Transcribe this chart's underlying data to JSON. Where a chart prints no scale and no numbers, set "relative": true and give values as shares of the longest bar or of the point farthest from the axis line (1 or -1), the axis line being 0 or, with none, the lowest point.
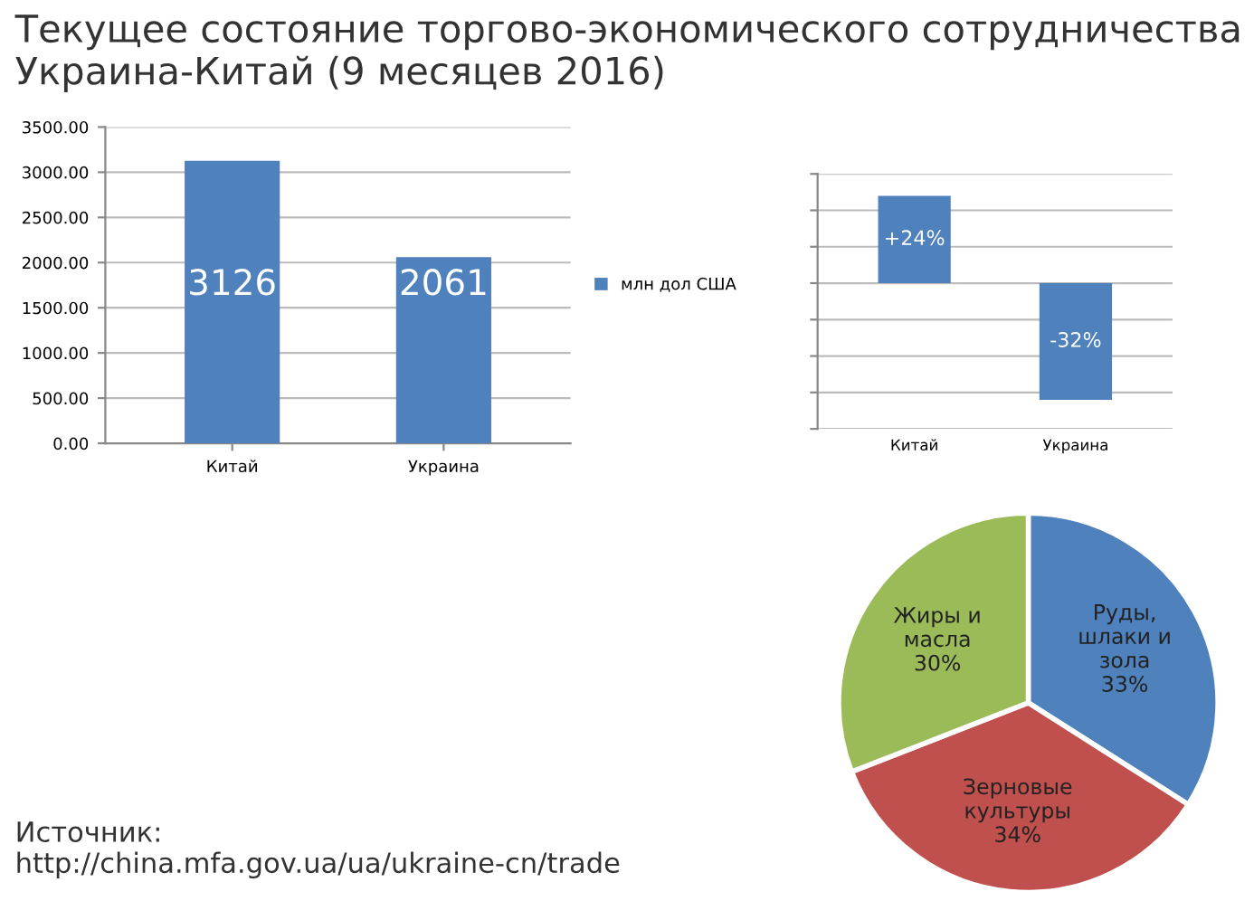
{
  "chart_data": [
    {
      "type": "bar",
      "title": "Текущее состояние торгово-экономического сотрудничества\nУкраина-Китай (9 месяцев 2016)",
      "categories": [
        "Китай",
        "Украина"
      ],
      "series": [
        {
          "name": "млн дол США",
          "color": "#4f81bd",
          "values": [
            3126,
            2061
          ]
        }
      ],
      "data_labels": true,
      "ylim": [
        0,
        3500
      ],
      "yticks": [
        {
          "value": 0,
          "label": "0.00"
        },
        {
          "value": 500,
          "label": "500.00"
        },
        {
          "value": 1000,
          "label": "1000.00"
        },
        {
          "value": 1500,
          "label": "1500.00"
        },
        {
          "value": 2000,
          "label": "2000.00"
        },
        {
          "value": 2500,
          "label": "2500.00"
        },
        {
          "value": 3000,
          "label": "3000.00"
        },
        {
          "value": 3500,
          "label": "3500.00"
        }
      ],
      "grid": "y",
      "legend": "right",
      "annotations": [
        "Источник:\nhttp://china.mfa.gov.ua/ua/ukraine-cn/trade"
      ]
    },
    {
      "type": "bar",
      "categories": [
        "Китай",
        "Украина"
      ],
      "series": [
        {
          "color": "#4f81bd",
          "values": [
            0.75,
            -1
          ]
        }
      ],
      "value_labels": [
        "+24%",
        "-32%"
      ],
      "relative": true,
      "grid": "y",
      "tick_labels": "x"
    },
    {
      "type": "pie",
      "categories": [
        "Руды,\nшлаки и\nзола",
        "Зерновые\nкультуры",
        "Жиры и\nмасла"
      ],
      "values": [
        33,
        34,
        30
      ],
      "colors": [
        "#4f81bd",
        "#c0504d",
        "#9bbb59"
      ],
      "value_labels": [
        "33%",
        "34%",
        "30%"
      ],
      "data_labels": true
    }
  ]
}
